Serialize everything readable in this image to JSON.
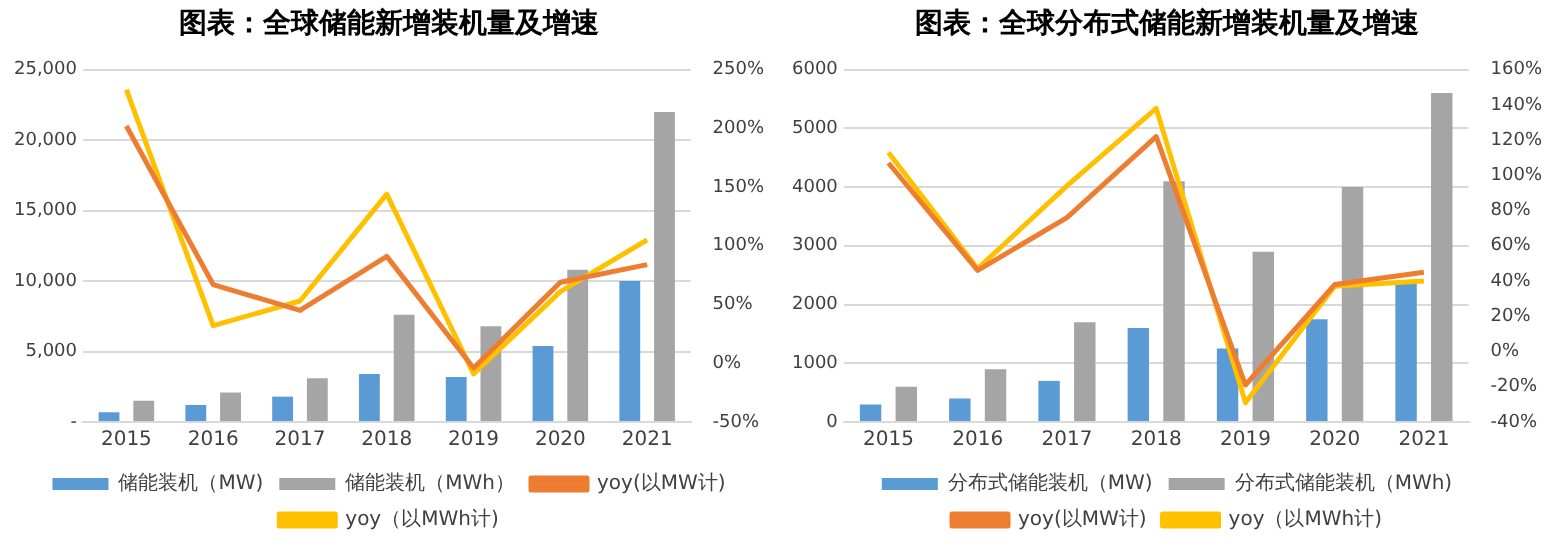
{
  "chart_data": [
    {
      "type": "bar",
      "title": "图表：全球储能新增装机量及增速",
      "categories": [
        "2015",
        "2016",
        "2017",
        "2018",
        "2019",
        "2020",
        "2021"
      ],
      "series": [
        {
          "name": "储能装机（MW)",
          "color": "#5b9bd5",
          "values": [
            700,
            1200,
            1800,
            3400,
            3200,
            5400,
            10000
          ]
        },
        {
          "name": "储能装机（MWh）",
          "color": "#a5a5a5",
          "values": [
            1500,
            2100,
            3100,
            7600,
            6800,
            10800,
            22000
          ]
        },
        {
          "name": "yoy(以MW计)",
          "type": "line",
          "axis": "y2",
          "color": "#ed7d31",
          "values": [
            202,
            67,
            45,
            91,
            -4,
            69,
            84
          ]
        },
        {
          "name": "yoy（以MWh计)",
          "type": "line",
          "axis": "y2",
          "color": "#ffc000",
          "values": [
            233,
            32,
            53,
            144,
            -9,
            61,
            105
          ]
        }
      ],
      "ylim": [
        0,
        25000
      ],
      "yticks": [
        {
          "value": 0,
          "label": "-"
        },
        {
          "value": 5000,
          "label": "5,000"
        },
        {
          "value": 10000,
          "label": "10,000"
        },
        {
          "value": 15000,
          "label": "15,000"
        },
        {
          "value": 20000,
          "label": "20,000"
        },
        {
          "value": 25000,
          "label": "25,000"
        }
      ],
      "y2lim": [
        -50,
        250
      ],
      "y2ticks": [
        {
          "value": -50,
          "label": "-50%"
        },
        {
          "value": 0,
          "label": "0%"
        },
        {
          "value": 50,
          "label": "50%"
        },
        {
          "value": 100,
          "label": "100%"
        },
        {
          "value": 150,
          "label": "150%"
        },
        {
          "value": 200,
          "label": "200%"
        },
        {
          "value": 250,
          "label": "250%"
        }
      ],
      "grid": "y",
      "legend": "bottom",
      "marker": "none"
    },
    {
      "type": "bar",
      "title": "图表：全球分布式储能新增装机量及增速",
      "categories": [
        "2015",
        "2016",
        "2017",
        "2018",
        "2019",
        "2020",
        "2021"
      ],
      "series": [
        {
          "name": "分布式储能装机（MW)",
          "color": "#5b9bd5",
          "values": [
            300,
            400,
            700,
            1600,
            1250,
            1750,
            2400
          ]
        },
        {
          "name": "分布式储能装机（MWh)",
          "color": "#a5a5a5",
          "values": [
            600,
            900,
            1700,
            4100,
            2900,
            4000,
            5600
          ]
        },
        {
          "name": "yoy(以MW计)",
          "type": "line",
          "axis": "y2",
          "color": "#ed7d31",
          "values": [
            107,
            46,
            76,
            122,
            -19,
            38,
            45
          ]
        },
        {
          "name": "yoy（以MWh计)",
          "type": "line",
          "axis": "y2",
          "color": "#ffc000",
          "values": [
            113,
            47,
            94,
            138,
            -29,
            37,
            40
          ]
        }
      ],
      "ylim": [
        0,
        6000
      ],
      "yticks": [
        0,
        1000,
        2000,
        3000,
        4000,
        5000,
        6000
      ],
      "y2lim": [
        -40,
        160
      ],
      "y2ticks": [
        {
          "value": -40,
          "label": "-40%"
        },
        {
          "value": -20,
          "label": "-20%"
        },
        {
          "value": 0,
          "label": "0%"
        },
        {
          "value": 20,
          "label": "20%"
        },
        {
          "value": 40,
          "label": "40%"
        },
        {
          "value": 60,
          "label": "60%"
        },
        {
          "value": 80,
          "label": "80%"
        },
        {
          "value": 100,
          "label": "100%"
        },
        {
          "value": 120,
          "label": "120%"
        },
        {
          "value": 140,
          "label": "140%"
        },
        {
          "value": 160,
          "label": "160%"
        }
      ],
      "grid": "y",
      "legend": "bottom",
      "marker": "none"
    }
  ]
}
